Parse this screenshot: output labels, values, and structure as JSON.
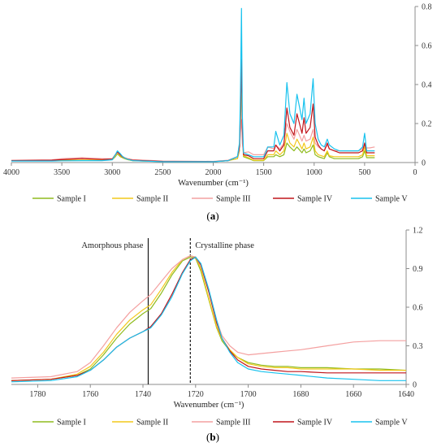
{
  "colors": {
    "Sample I": "#8fbc1e",
    "Sample II": "#f2c81b",
    "Sample III": "#f4a0a0",
    "Sample IV": "#c0151b",
    "Sample V": "#19c2ee",
    "axis": "#8c8c8c",
    "vline": "#1a1a1a"
  },
  "panel_a": {
    "caption": "(a)",
    "caption_bold": "a"
  },
  "panel_b": {
    "caption": "(b)",
    "caption_bold": "b",
    "annotations": {
      "amorphous": "Amorphous phase",
      "crystalline": "Crystalline phase"
    }
  },
  "chart_data": [
    {
      "type": "line",
      "panel": "a",
      "xlabel": "Wavenumber (cm⁻¹)",
      "ylabel": "",
      "xlim": [
        4000,
        0
      ],
      "ylim": [
        0,
        0.8
      ],
      "xticks": [
        "4000",
        "3500",
        "3000",
        "2500",
        "2000",
        "1500",
        "1000",
        "500",
        "0"
      ],
      "yticks": [
        "0",
        "0.2",
        "0.4",
        "0.6",
        "0.8"
      ],
      "y_axis_side": "right",
      "legend_position": "bottom",
      "series": [
        {
          "name": "Sample I",
          "color": "#8fbc1e",
          "x": [
            4000,
            3600,
            3500,
            3300,
            3100,
            3000,
            2970,
            2950,
            2920,
            2900,
            2880,
            2850,
            2800,
            2500,
            2000,
            1850,
            1760,
            1740,
            1730,
            1720,
            1712,
            1700,
            1650,
            1600,
            1500,
            1480,
            1460,
            1400,
            1380,
            1340,
            1300,
            1270,
            1240,
            1200,
            1170,
            1120,
            1100,
            1080,
            1040,
            1010,
            990,
            960,
            930,
            900,
            870,
            850,
            800,
            750,
            700,
            650,
            600,
            560,
            520,
            500,
            480,
            450,
            400
          ],
          "y": [
            0.01,
            0.01,
            0.012,
            0.012,
            0.012,
            0.015,
            0.03,
            0.045,
            0.03,
            0.025,
            0.02,
            0.015,
            0.01,
            0.005,
            0.005,
            0.01,
            0.02,
            0.06,
            0.2,
            0.52,
            0.15,
            0.03,
            0.02,
            0.01,
            0.01,
            0.02,
            0.03,
            0.03,
            0.04,
            0.03,
            0.04,
            0.1,
            0.08,
            0.06,
            0.08,
            0.05,
            0.07,
            0.05,
            0.06,
            0.09,
            0.04,
            0.03,
            0.025,
            0.02,
            0.05,
            0.03,
            0.02,
            0.02,
            0.02,
            0.02,
            0.02,
            0.02,
            0.03,
            0.06,
            0.025,
            0.025,
            0.025
          ]
        },
        {
          "name": "Sample II",
          "color": "#f2c81b",
          "x": [
            4000,
            3600,
            3500,
            3300,
            3100,
            3000,
            2970,
            2950,
            2920,
            2900,
            2880,
            2850,
            2800,
            2500,
            2000,
            1850,
            1760,
            1740,
            1730,
            1720,
            1712,
            1700,
            1650,
            1600,
            1500,
            1480,
            1460,
            1400,
            1380,
            1340,
            1300,
            1270,
            1240,
            1200,
            1170,
            1120,
            1100,
            1080,
            1040,
            1010,
            990,
            960,
            930,
            900,
            870,
            850,
            800,
            750,
            700,
            650,
            600,
            560,
            520,
            500,
            480,
            450,
            400
          ],
          "y": [
            0.01,
            0.01,
            0.012,
            0.013,
            0.013,
            0.016,
            0.035,
            0.05,
            0.035,
            0.028,
            0.022,
            0.016,
            0.01,
            0.005,
            0.005,
            0.01,
            0.02,
            0.07,
            0.22,
            0.52,
            0.16,
            0.035,
            0.025,
            0.012,
            0.012,
            0.025,
            0.04,
            0.04,
            0.06,
            0.04,
            0.06,
            0.15,
            0.1,
            0.08,
            0.12,
            0.07,
            0.1,
            0.07,
            0.08,
            0.13,
            0.06,
            0.04,
            0.035,
            0.03,
            0.06,
            0.035,
            0.03,
            0.03,
            0.03,
            0.03,
            0.03,
            0.03,
            0.04,
            0.08,
            0.035,
            0.035,
            0.035
          ]
        },
        {
          "name": "Sample III",
          "color": "#f4a0a0",
          "x": [
            4000,
            3600,
            3500,
            3300,
            3100,
            3000,
            2970,
            2950,
            2920,
            2900,
            2880,
            2850,
            2800,
            2500,
            2000,
            1850,
            1760,
            1740,
            1730,
            1720,
            1712,
            1700,
            1650,
            1600,
            1500,
            1480,
            1460,
            1400,
            1380,
            1340,
            1300,
            1270,
            1240,
            1200,
            1170,
            1120,
            1100,
            1080,
            1040,
            1010,
            990,
            960,
            930,
            900,
            870,
            850,
            800,
            750,
            700,
            650,
            600,
            560,
            520,
            500,
            480,
            450,
            400
          ],
          "y": [
            0.012,
            0.014,
            0.02,
            0.025,
            0.02,
            0.02,
            0.04,
            0.05,
            0.04,
            0.032,
            0.026,
            0.02,
            0.015,
            0.008,
            0.006,
            0.012,
            0.03,
            0.07,
            0.15,
            0.22,
            0.1,
            0.05,
            0.055,
            0.04,
            0.04,
            0.06,
            0.08,
            0.07,
            0.09,
            0.07,
            0.1,
            0.2,
            0.16,
            0.12,
            0.17,
            0.11,
            0.14,
            0.11,
            0.12,
            0.17,
            0.1,
            0.08,
            0.07,
            0.06,
            0.09,
            0.07,
            0.06,
            0.06,
            0.06,
            0.06,
            0.06,
            0.06,
            0.07,
            0.09,
            0.075,
            0.075,
            0.08
          ]
        },
        {
          "name": "Sample IV",
          "color": "#c0151b",
          "x": [
            4000,
            3600,
            3500,
            3300,
            3100,
            3000,
            2970,
            2950,
            2920,
            2900,
            2880,
            2850,
            2800,
            2500,
            2000,
            1850,
            1760,
            1740,
            1730,
            1720,
            1712,
            1700,
            1650,
            1600,
            1500,
            1480,
            1460,
            1400,
            1380,
            1340,
            1300,
            1270,
            1240,
            1200,
            1170,
            1120,
            1100,
            1080,
            1040,
            1010,
            990,
            960,
            930,
            900,
            870,
            850,
            800,
            750,
            700,
            650,
            600,
            560,
            520,
            500,
            480,
            450,
            400
          ],
          "y": [
            0.01,
            0.012,
            0.015,
            0.02,
            0.016,
            0.018,
            0.04,
            0.055,
            0.04,
            0.03,
            0.024,
            0.018,
            0.012,
            0.006,
            0.005,
            0.01,
            0.03,
            0.08,
            0.25,
            0.53,
            0.18,
            0.04,
            0.035,
            0.02,
            0.02,
            0.04,
            0.06,
            0.06,
            0.09,
            0.06,
            0.09,
            0.28,
            0.18,
            0.14,
            0.25,
            0.15,
            0.23,
            0.15,
            0.18,
            0.3,
            0.13,
            0.09,
            0.07,
            0.06,
            0.1,
            0.07,
            0.06,
            0.05,
            0.05,
            0.05,
            0.05,
            0.05,
            0.06,
            0.1,
            0.05,
            0.05,
            0.05
          ]
        },
        {
          "name": "Sample V",
          "color": "#19c2ee",
          "x": [
            4000,
            3600,
            3500,
            3300,
            3100,
            3000,
            2970,
            2950,
            2920,
            2900,
            2880,
            2850,
            2800,
            2500,
            2000,
            1850,
            1760,
            1740,
            1730,
            1720,
            1712,
            1700,
            1650,
            1600,
            1500,
            1480,
            1460,
            1400,
            1380,
            1340,
            1300,
            1270,
            1240,
            1200,
            1170,
            1120,
            1100,
            1080,
            1040,
            1010,
            990,
            960,
            930,
            900,
            870,
            850,
            800,
            750,
            700,
            650,
            600,
            560,
            520,
            500,
            480,
            450,
            400
          ],
          "y": [
            0.008,
            0.008,
            0.009,
            0.01,
            0.01,
            0.014,
            0.04,
            0.06,
            0.045,
            0.032,
            0.024,
            0.017,
            0.01,
            0.004,
            0.004,
            0.01,
            0.03,
            0.1,
            0.35,
            0.79,
            0.25,
            0.05,
            0.04,
            0.03,
            0.03,
            0.05,
            0.08,
            0.08,
            0.16,
            0.09,
            0.14,
            0.41,
            0.25,
            0.2,
            0.35,
            0.22,
            0.33,
            0.2,
            0.25,
            0.43,
            0.2,
            0.12,
            0.09,
            0.08,
            0.12,
            0.09,
            0.07,
            0.06,
            0.06,
            0.06,
            0.06,
            0.06,
            0.08,
            0.15,
            0.06,
            0.06,
            0.06
          ]
        }
      ]
    },
    {
      "type": "line",
      "panel": "b",
      "xlabel": "Wavenumber (cm⁻¹)",
      "ylabel": "",
      "xlim": [
        1790,
        1640
      ],
      "ylim": [
        0,
        1.2
      ],
      "xticks": [
        "1780",
        "1760",
        "1740",
        "1720",
        "1700",
        "1680",
        "1660",
        "1640"
      ],
      "yticks": [
        "0",
        "0.3",
        "0.6",
        "0.9",
        "1.2"
      ],
      "y_axis_side": "right",
      "legend_position": "bottom",
      "vertical_lines": [
        {
          "x": 1738,
          "style": "solid",
          "label": "Amorphous phase"
        },
        {
          "x": 1722,
          "style": "dashed",
          "label": "Crystalline phase"
        }
      ],
      "series": [
        {
          "name": "Sample I",
          "color": "#8fbc1e",
          "x": [
            1790,
            1775,
            1765,
            1760,
            1755,
            1750,
            1745,
            1740,
            1737,
            1733,
            1729,
            1725,
            1722,
            1720,
            1718,
            1715,
            1712,
            1710,
            1707,
            1704,
            1700,
            1695,
            1690,
            1685,
            1680,
            1670,
            1660,
            1650,
            1640
          ],
          "y": [
            0.03,
            0.04,
            0.07,
            0.12,
            0.23,
            0.36,
            0.47,
            0.55,
            0.59,
            0.71,
            0.85,
            0.96,
            0.99,
            0.98,
            0.88,
            0.66,
            0.44,
            0.34,
            0.26,
            0.21,
            0.17,
            0.15,
            0.14,
            0.14,
            0.13,
            0.13,
            0.12,
            0.12,
            0.11
          ]
        },
        {
          "name": "Sample II",
          "color": "#f2c81b",
          "x": [
            1790,
            1775,
            1765,
            1760,
            1755,
            1750,
            1745,
            1740,
            1737,
            1733,
            1729,
            1725,
            1722,
            1720,
            1718,
            1715,
            1712,
            1710,
            1707,
            1704,
            1700,
            1695,
            1690,
            1685,
            1680,
            1670,
            1660,
            1650,
            1640
          ],
          "y": [
            0.03,
            0.04,
            0.08,
            0.14,
            0.25,
            0.39,
            0.5,
            0.58,
            0.62,
            0.74,
            0.87,
            0.97,
            1.0,
            0.99,
            0.9,
            0.67,
            0.45,
            0.35,
            0.27,
            0.21,
            0.16,
            0.14,
            0.13,
            0.13,
            0.12,
            0.12,
            0.12,
            0.11,
            0.11
          ]
        },
        {
          "name": "Sample III",
          "color": "#f4a0a0",
          "x": [
            1790,
            1775,
            1765,
            1760,
            1755,
            1750,
            1745,
            1740,
            1737,
            1733,
            1729,
            1725,
            1722,
            1720,
            1718,
            1715,
            1712,
            1710,
            1707,
            1704,
            1700,
            1695,
            1690,
            1685,
            1680,
            1670,
            1660,
            1650,
            1640
          ],
          "y": [
            0.05,
            0.06,
            0.1,
            0.17,
            0.3,
            0.44,
            0.56,
            0.65,
            0.7,
            0.8,
            0.9,
            0.97,
            1.0,
            0.99,
            0.92,
            0.72,
            0.5,
            0.38,
            0.3,
            0.25,
            0.23,
            0.24,
            0.25,
            0.26,
            0.27,
            0.3,
            0.33,
            0.34,
            0.34
          ]
        },
        {
          "name": "Sample IV",
          "color": "#c0151b",
          "x": [
            1790,
            1775,
            1765,
            1760,
            1755,
            1750,
            1745,
            1740,
            1737,
            1733,
            1729,
            1725,
            1722,
            1720,
            1718,
            1715,
            1712,
            1710,
            1707,
            1704,
            1700,
            1695,
            1690,
            1685,
            1680,
            1670,
            1660,
            1650,
            1640
          ],
          "y": [
            0.03,
            0.04,
            0.07,
            0.11,
            0.19,
            0.29,
            0.36,
            0.41,
            0.45,
            0.55,
            0.7,
            0.87,
            0.97,
            0.99,
            0.93,
            0.72,
            0.48,
            0.36,
            0.26,
            0.19,
            0.14,
            0.12,
            0.11,
            0.1,
            0.1,
            0.09,
            0.09,
            0.09,
            0.09
          ]
        },
        {
          "name": "Sample V",
          "color": "#19c2ee",
          "x": [
            1790,
            1775,
            1765,
            1760,
            1755,
            1750,
            1745,
            1740,
            1737,
            1733,
            1729,
            1725,
            1722,
            1720,
            1718,
            1715,
            1712,
            1710,
            1707,
            1704,
            1700,
            1695,
            1690,
            1685,
            1680,
            1670,
            1660,
            1650,
            1640
          ],
          "y": [
            0.02,
            0.03,
            0.06,
            0.11,
            0.19,
            0.29,
            0.36,
            0.41,
            0.44,
            0.54,
            0.68,
            0.86,
            0.96,
            0.99,
            0.94,
            0.74,
            0.5,
            0.36,
            0.25,
            0.17,
            0.12,
            0.1,
            0.09,
            0.08,
            0.07,
            0.05,
            0.04,
            0.03,
            0.03
          ]
        }
      ]
    }
  ]
}
